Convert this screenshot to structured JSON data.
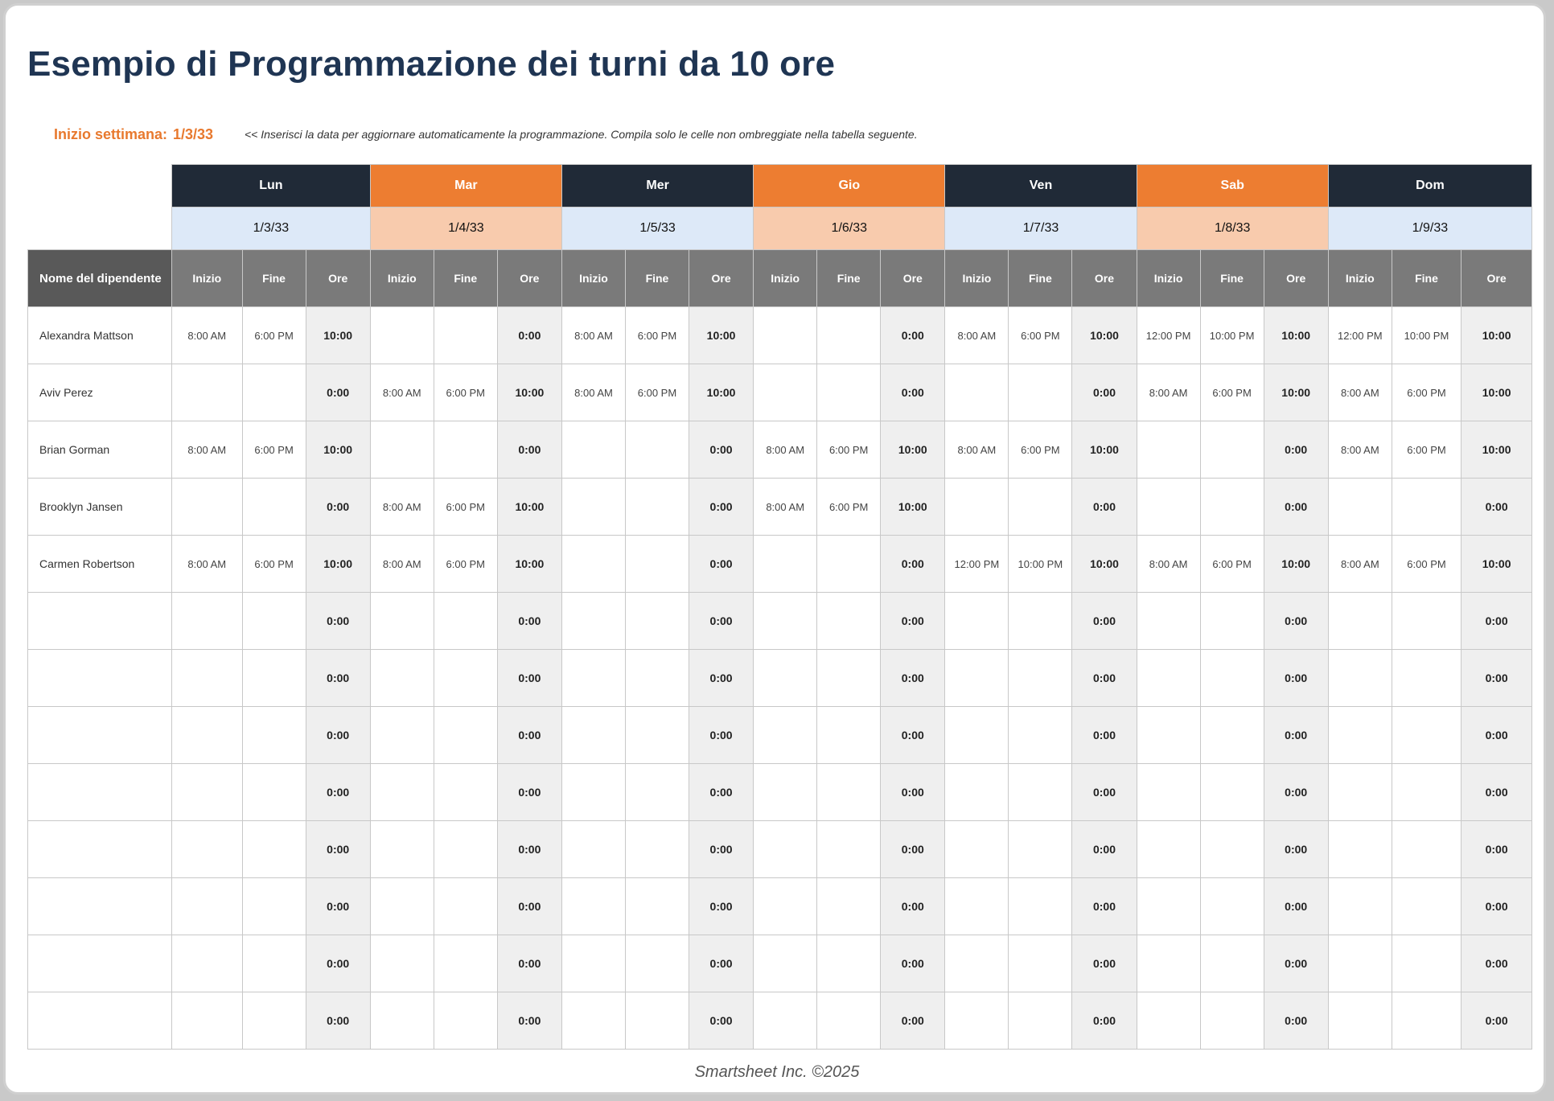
{
  "title": "Esempio di Programmazione dei turni da 10 ore",
  "week": {
    "label": "Inizio settimana:",
    "value": "1/3/33",
    "instructions": "<< Inserisci la data per aggiornare automaticamente la programmazione. Compila solo le celle non ombreggiate nella tabella seguente."
  },
  "colors": {
    "dark": "#202a37",
    "orange": "#ed7d31",
    "light_blue": "#dde9f8",
    "peach": "#f8cbad",
    "header_gray": "#7a7a7a",
    "title": "#1f3553"
  },
  "days": [
    {
      "name": "Lun",
      "date": "1/3/33",
      "style": "dark"
    },
    {
      "name": "Mar",
      "date": "1/4/33",
      "style": "orange"
    },
    {
      "name": "Mer",
      "date": "1/5/33",
      "style": "dark"
    },
    {
      "name": "Gio",
      "date": "1/6/33",
      "style": "orange"
    },
    {
      "name": "Ven",
      "date": "1/7/33",
      "style": "dark"
    },
    {
      "name": "Sab",
      "date": "1/8/33",
      "style": "orange"
    },
    {
      "name": "Dom",
      "date": "1/9/33",
      "style": "dark"
    }
  ],
  "headers": {
    "employee": "Nome del dipendente",
    "start": "Inizio",
    "end": "Fine",
    "hours": "Ore"
  },
  "employees": [
    {
      "name": "Alexandra Mattson",
      "shifts": [
        [
          "8:00 AM",
          "6:00 PM",
          "10:00"
        ],
        [
          "",
          "",
          "0:00"
        ],
        [
          "8:00 AM",
          "6:00 PM",
          "10:00"
        ],
        [
          "",
          "",
          "0:00"
        ],
        [
          "8:00 AM",
          "6:00 PM",
          "10:00"
        ],
        [
          "12:00 PM",
          "10:00 PM",
          "10:00"
        ],
        [
          "12:00 PM",
          "10:00 PM",
          "10:00"
        ]
      ]
    },
    {
      "name": "Aviv Perez",
      "shifts": [
        [
          "",
          "",
          "0:00"
        ],
        [
          "8:00 AM",
          "6:00 PM",
          "10:00"
        ],
        [
          "8:00 AM",
          "6:00 PM",
          "10:00"
        ],
        [
          "",
          "",
          "0:00"
        ],
        [
          "",
          "",
          "0:00"
        ],
        [
          "8:00 AM",
          "6:00 PM",
          "10:00"
        ],
        [
          "8:00 AM",
          "6:00 PM",
          "10:00"
        ]
      ]
    },
    {
      "name": "Brian Gorman",
      "shifts": [
        [
          "8:00 AM",
          "6:00 PM",
          "10:00"
        ],
        [
          "",
          "",
          "0:00"
        ],
        [
          "",
          "",
          "0:00"
        ],
        [
          "8:00 AM",
          "6:00 PM",
          "10:00"
        ],
        [
          "8:00 AM",
          "6:00 PM",
          "10:00"
        ],
        [
          "",
          "",
          "0:00"
        ],
        [
          "8:00 AM",
          "6:00 PM",
          "10:00"
        ]
      ]
    },
    {
      "name": "Brooklyn Jansen",
      "shifts": [
        [
          "",
          "",
          "0:00"
        ],
        [
          "8:00 AM",
          "6:00 PM",
          "10:00"
        ],
        [
          "",
          "",
          "0:00"
        ],
        [
          "8:00 AM",
          "6:00 PM",
          "10:00"
        ],
        [
          "",
          "",
          "0:00"
        ],
        [
          "",
          "",
          "0:00"
        ],
        [
          "",
          "",
          "0:00"
        ]
      ]
    },
    {
      "name": "Carmen Robertson",
      "shifts": [
        [
          "8:00 AM",
          "6:00 PM",
          "10:00"
        ],
        [
          "8:00 AM",
          "6:00 PM",
          "10:00"
        ],
        [
          "",
          "",
          "0:00"
        ],
        [
          "",
          "",
          "0:00"
        ],
        [
          "12:00 PM",
          "10:00 PM",
          "10:00"
        ],
        [
          "8:00 AM",
          "6:00 PM",
          "10:00"
        ],
        [
          "8:00 AM",
          "6:00 PM",
          "10:00"
        ]
      ]
    },
    {
      "name": "",
      "shifts": [
        [
          "",
          "",
          "0:00"
        ],
        [
          "",
          "",
          "0:00"
        ],
        [
          "",
          "",
          "0:00"
        ],
        [
          "",
          "",
          "0:00"
        ],
        [
          "",
          "",
          "0:00"
        ],
        [
          "",
          "",
          "0:00"
        ],
        [
          "",
          "",
          "0:00"
        ]
      ]
    },
    {
      "name": "",
      "shifts": [
        [
          "",
          "",
          "0:00"
        ],
        [
          "",
          "",
          "0:00"
        ],
        [
          "",
          "",
          "0:00"
        ],
        [
          "",
          "",
          "0:00"
        ],
        [
          "",
          "",
          "0:00"
        ],
        [
          "",
          "",
          "0:00"
        ],
        [
          "",
          "",
          "0:00"
        ]
      ]
    },
    {
      "name": "",
      "shifts": [
        [
          "",
          "",
          "0:00"
        ],
        [
          "",
          "",
          "0:00"
        ],
        [
          "",
          "",
          "0:00"
        ],
        [
          "",
          "",
          "0:00"
        ],
        [
          "",
          "",
          "0:00"
        ],
        [
          "",
          "",
          "0:00"
        ],
        [
          "",
          "",
          "0:00"
        ]
      ]
    },
    {
      "name": "",
      "shifts": [
        [
          "",
          "",
          "0:00"
        ],
        [
          "",
          "",
          "0:00"
        ],
        [
          "",
          "",
          "0:00"
        ],
        [
          "",
          "",
          "0:00"
        ],
        [
          "",
          "",
          "0:00"
        ],
        [
          "",
          "",
          "0:00"
        ],
        [
          "",
          "",
          "0:00"
        ]
      ]
    },
    {
      "name": "",
      "shifts": [
        [
          "",
          "",
          "0:00"
        ],
        [
          "",
          "",
          "0:00"
        ],
        [
          "",
          "",
          "0:00"
        ],
        [
          "",
          "",
          "0:00"
        ],
        [
          "",
          "",
          "0:00"
        ],
        [
          "",
          "",
          "0:00"
        ],
        [
          "",
          "",
          "0:00"
        ]
      ]
    },
    {
      "name": "",
      "shifts": [
        [
          "",
          "",
          "0:00"
        ],
        [
          "",
          "",
          "0:00"
        ],
        [
          "",
          "",
          "0:00"
        ],
        [
          "",
          "",
          "0:00"
        ],
        [
          "",
          "",
          "0:00"
        ],
        [
          "",
          "",
          "0:00"
        ],
        [
          "",
          "",
          "0:00"
        ]
      ]
    },
    {
      "name": "",
      "shifts": [
        [
          "",
          "",
          "0:00"
        ],
        [
          "",
          "",
          "0:00"
        ],
        [
          "",
          "",
          "0:00"
        ],
        [
          "",
          "",
          "0:00"
        ],
        [
          "",
          "",
          "0:00"
        ],
        [
          "",
          "",
          "0:00"
        ],
        [
          "",
          "",
          "0:00"
        ]
      ]
    },
    {
      "name": "",
      "shifts": [
        [
          "",
          "",
          "0:00"
        ],
        [
          "",
          "",
          "0:00"
        ],
        [
          "",
          "",
          "0:00"
        ],
        [
          "",
          "",
          "0:00"
        ],
        [
          "",
          "",
          "0:00"
        ],
        [
          "",
          "",
          "0:00"
        ],
        [
          "",
          "",
          "0:00"
        ]
      ]
    }
  ],
  "footer": "Smartsheet Inc. ©2025"
}
